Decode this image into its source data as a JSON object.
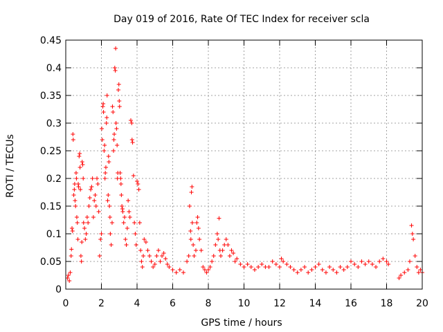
{
  "chart_data": {
    "type": "scatter",
    "title": "Day 019 of 2016, Rate Of TEC Index for receiver scla",
    "xlabel": "GPS time / hours",
    "ylabel": "ROTI / TECUs",
    "xlim": [
      0,
      20
    ],
    "ylim": [
      0,
      0.45
    ],
    "x_ticks": [
      "0",
      "2",
      "4",
      "6",
      "8",
      "10",
      "12",
      "14",
      "16",
      "18",
      "20"
    ],
    "y_ticks": [
      "0",
      "0.05",
      "0.1",
      "0.15",
      "0.2",
      "0.25",
      "0.3",
      "0.35",
      "0.4",
      "0.45"
    ],
    "grid": true,
    "marker": "+",
    "series": [
      {
        "name": "ROTI",
        "color": "#ff0000",
        "points": [
          [
            0.1,
            0.02
          ],
          [
            0.15,
            0.025
          ],
          [
            0.2,
            0.015
          ],
          [
            0.25,
            0.03
          ],
          [
            0.3,
            0.06
          ],
          [
            0.32,
            0.072
          ],
          [
            0.35,
            0.11
          ],
          [
            0.38,
            0.105
          ],
          [
            0.4,
            0.28
          ],
          [
            0.42,
            0.27
          ],
          [
            0.45,
            0.17
          ],
          [
            0.48,
            0.18
          ],
          [
            0.5,
            0.19
          ],
          [
            0.52,
            0.16
          ],
          [
            0.55,
            0.15
          ],
          [
            0.58,
            0.21
          ],
          [
            0.6,
            0.2
          ],
          [
            0.62,
            0.13
          ],
          [
            0.65,
            0.12
          ],
          [
            0.68,
            0.09
          ],
          [
            0.7,
            0.19
          ],
          [
            0.72,
            0.185
          ],
          [
            0.75,
            0.24
          ],
          [
            0.78,
            0.245
          ],
          [
            0.8,
            0.22
          ],
          [
            0.82,
            0.18
          ],
          [
            0.85,
            0.06
          ],
          [
            0.88,
            0.05
          ],
          [
            0.9,
            0.085
          ],
          [
            0.92,
            0.23
          ],
          [
            0.95,
            0.225
          ],
          [
            0.98,
            0.2
          ],
          [
            1.0,
            0.12
          ],
          [
            1.05,
            0.11
          ],
          [
            1.1,
            0.09
          ],
          [
            1.15,
            0.1
          ],
          [
            1.2,
            0.13
          ],
          [
            1.25,
            0.12
          ],
          [
            1.3,
            0.15
          ],
          [
            1.35,
            0.165
          ],
          [
            1.4,
            0.18
          ],
          [
            1.45,
            0.185
          ],
          [
            1.5,
            0.2
          ],
          [
            1.55,
            0.13
          ],
          [
            1.6,
            0.16
          ],
          [
            1.65,
            0.17
          ],
          [
            1.7,
            0.15
          ],
          [
            1.75,
            0.2
          ],
          [
            1.8,
            0.19
          ],
          [
            1.85,
            0.14
          ],
          [
            1.9,
            0.06
          ],
          [
            1.95,
            0.09
          ],
          [
            2.0,
            0.1
          ],
          [
            2.02,
            0.29
          ],
          [
            2.05,
            0.27
          ],
          [
            2.08,
            0.33
          ],
          [
            2.1,
            0.335
          ],
          [
            2.12,
            0.32
          ],
          [
            2.15,
            0.25
          ],
          [
            2.18,
            0.26
          ],
          [
            2.2,
            0.2
          ],
          [
            2.22,
            0.21
          ],
          [
            2.25,
            0.22
          ],
          [
            2.28,
            0.3
          ],
          [
            2.3,
            0.31
          ],
          [
            2.32,
            0.35
          ],
          [
            2.35,
            0.16
          ],
          [
            2.38,
            0.17
          ],
          [
            2.4,
            0.24
          ],
          [
            2.42,
            0.23
          ],
          [
            2.45,
            0.15
          ],
          [
            2.48,
            0.13
          ],
          [
            2.5,
            0.1
          ],
          [
            2.55,
            0.08
          ],
          [
            2.6,
            0.12
          ],
          [
            2.62,
            0.33
          ],
          [
            2.65,
            0.32
          ],
          [
            2.68,
            0.25
          ],
          [
            2.7,
            0.27
          ],
          [
            2.72,
            0.28
          ],
          [
            2.75,
            0.4
          ],
          [
            2.78,
            0.395
          ],
          [
            2.8,
            0.435
          ],
          [
            2.82,
            0.3
          ],
          [
            2.85,
            0.29
          ],
          [
            2.88,
            0.26
          ],
          [
            2.9,
            0.2
          ],
          [
            2.92,
            0.21
          ],
          [
            2.95,
            0.36
          ],
          [
            2.98,
            0.37
          ],
          [
            3.0,
            0.34
          ],
          [
            3.02,
            0.33
          ],
          [
            3.05,
            0.21
          ],
          [
            3.08,
            0.2
          ],
          [
            3.1,
            0.19
          ],
          [
            3.12,
            0.17
          ],
          [
            3.15,
            0.15
          ],
          [
            3.18,
            0.145
          ],
          [
            3.2,
            0.14
          ],
          [
            3.25,
            0.12
          ],
          [
            3.3,
            0.13
          ],
          [
            3.35,
            0.09
          ],
          [
            3.4,
            0.08
          ],
          [
            3.45,
            0.11
          ],
          [
            3.5,
            0.16
          ],
          [
            3.55,
            0.14
          ],
          [
            3.6,
            0.13
          ],
          [
            3.65,
            0.305
          ],
          [
            3.7,
            0.3
          ],
          [
            3.72,
            0.27
          ],
          [
            3.75,
            0.265
          ],
          [
            3.8,
            0.205
          ],
          [
            3.85,
            0.12
          ],
          [
            3.9,
            0.1
          ],
          [
            3.95,
            0.08
          ],
          [
            4.0,
            0.195
          ],
          [
            4.05,
            0.19
          ],
          [
            4.1,
            0.18
          ],
          [
            4.15,
            0.12
          ],
          [
            4.2,
            0.07
          ],
          [
            4.25,
            0.05
          ],
          [
            4.3,
            0.04
          ],
          [
            4.35,
            0.06
          ],
          [
            4.4,
            0.09
          ],
          [
            4.5,
            0.085
          ],
          [
            4.6,
            0.07
          ],
          [
            4.7,
            0.06
          ],
          [
            4.8,
            0.05
          ],
          [
            4.9,
            0.04
          ],
          [
            5.0,
            0.045
          ],
          [
            5.1,
            0.06
          ],
          [
            5.2,
            0.07
          ],
          [
            5.3,
            0.05
          ],
          [
            5.4,
            0.06
          ],
          [
            5.5,
            0.065
          ],
          [
            5.6,
            0.055
          ],
          [
            5.7,
            0.045
          ],
          [
            5.8,
            0.04
          ],
          [
            6.0,
            0.035
          ],
          [
            6.2,
            0.03
          ],
          [
            6.4,
            0.035
          ],
          [
            6.6,
            0.03
          ],
          [
            6.8,
            0.05
          ],
          [
            6.9,
            0.06
          ],
          [
            6.95,
            0.15
          ],
          [
            7.0,
            0.105
          ],
          [
            7.02,
            0.09
          ],
          [
            7.05,
            0.175
          ],
          [
            7.08,
            0.185
          ],
          [
            7.1,
            0.12
          ],
          [
            7.15,
            0.08
          ],
          [
            7.2,
            0.06
          ],
          [
            7.3,
            0.07
          ],
          [
            7.35,
            0.12
          ],
          [
            7.4,
            0.13
          ],
          [
            7.45,
            0.11
          ],
          [
            7.5,
            0.09
          ],
          [
            7.6,
            0.07
          ],
          [
            7.7,
            0.04
          ],
          [
            7.8,
            0.035
          ],
          [
            7.9,
            0.03
          ],
          [
            8.0,
            0.035
          ],
          [
            8.1,
            0.04
          ],
          [
            8.2,
            0.05
          ],
          [
            8.3,
            0.06
          ],
          [
            8.4,
            0.08
          ],
          [
            8.5,
            0.1
          ],
          [
            8.55,
            0.09
          ],
          [
            8.6,
            0.128
          ],
          [
            8.65,
            0.07
          ],
          [
            8.7,
            0.06
          ],
          [
            8.8,
            0.07
          ],
          [
            8.9,
            0.08
          ],
          [
            9.0,
            0.09
          ],
          [
            9.1,
            0.08
          ],
          [
            9.2,
            0.06
          ],
          [
            9.3,
            0.07
          ],
          [
            9.4,
            0.065
          ],
          [
            9.5,
            0.05
          ],
          [
            9.6,
            0.055
          ],
          [
            9.8,
            0.045
          ],
          [
            10.0,
            0.04
          ],
          [
            10.2,
            0.045
          ],
          [
            10.4,
            0.04
          ],
          [
            10.6,
            0.035
          ],
          [
            10.8,
            0.04
          ],
          [
            11.0,
            0.045
          ],
          [
            11.2,
            0.04
          ],
          [
            11.4,
            0.04
          ],
          [
            11.6,
            0.05
          ],
          [
            11.8,
            0.045
          ],
          [
            12.0,
            0.04
          ],
          [
            12.1,
            0.055
          ],
          [
            12.2,
            0.05
          ],
          [
            12.4,
            0.045
          ],
          [
            12.6,
            0.04
          ],
          [
            12.8,
            0.035
          ],
          [
            13.0,
            0.03
          ],
          [
            13.2,
            0.035
          ],
          [
            13.4,
            0.04
          ],
          [
            13.6,
            0.03
          ],
          [
            13.8,
            0.035
          ],
          [
            14.0,
            0.04
          ],
          [
            14.2,
            0.045
          ],
          [
            14.4,
            0.035
          ],
          [
            14.6,
            0.03
          ],
          [
            14.8,
            0.04
          ],
          [
            15.0,
            0.035
          ],
          [
            15.2,
            0.03
          ],
          [
            15.4,
            0.04
          ],
          [
            15.6,
            0.035
          ],
          [
            15.8,
            0.04
          ],
          [
            16.0,
            0.05
          ],
          [
            16.2,
            0.045
          ],
          [
            16.4,
            0.04
          ],
          [
            16.6,
            0.05
          ],
          [
            16.8,
            0.045
          ],
          [
            17.0,
            0.05
          ],
          [
            17.2,
            0.045
          ],
          [
            17.4,
            0.04
          ],
          [
            17.6,
            0.05
          ],
          [
            17.8,
            0.055
          ],
          [
            18.0,
            0.05
          ],
          [
            18.1,
            0.045
          ],
          [
            18.7,
            0.02
          ],
          [
            18.8,
            0.025
          ],
          [
            19.0,
            0.03
          ],
          [
            19.2,
            0.035
          ],
          [
            19.3,
            0.05
          ],
          [
            19.4,
            0.115
          ],
          [
            19.45,
            0.1
          ],
          [
            19.5,
            0.09
          ],
          [
            19.6,
            0.06
          ],
          [
            19.7,
            0.04
          ],
          [
            19.8,
            0.03
          ],
          [
            19.9,
            0.035
          ],
          [
            20.0,
            0.03
          ]
        ]
      }
    ]
  }
}
